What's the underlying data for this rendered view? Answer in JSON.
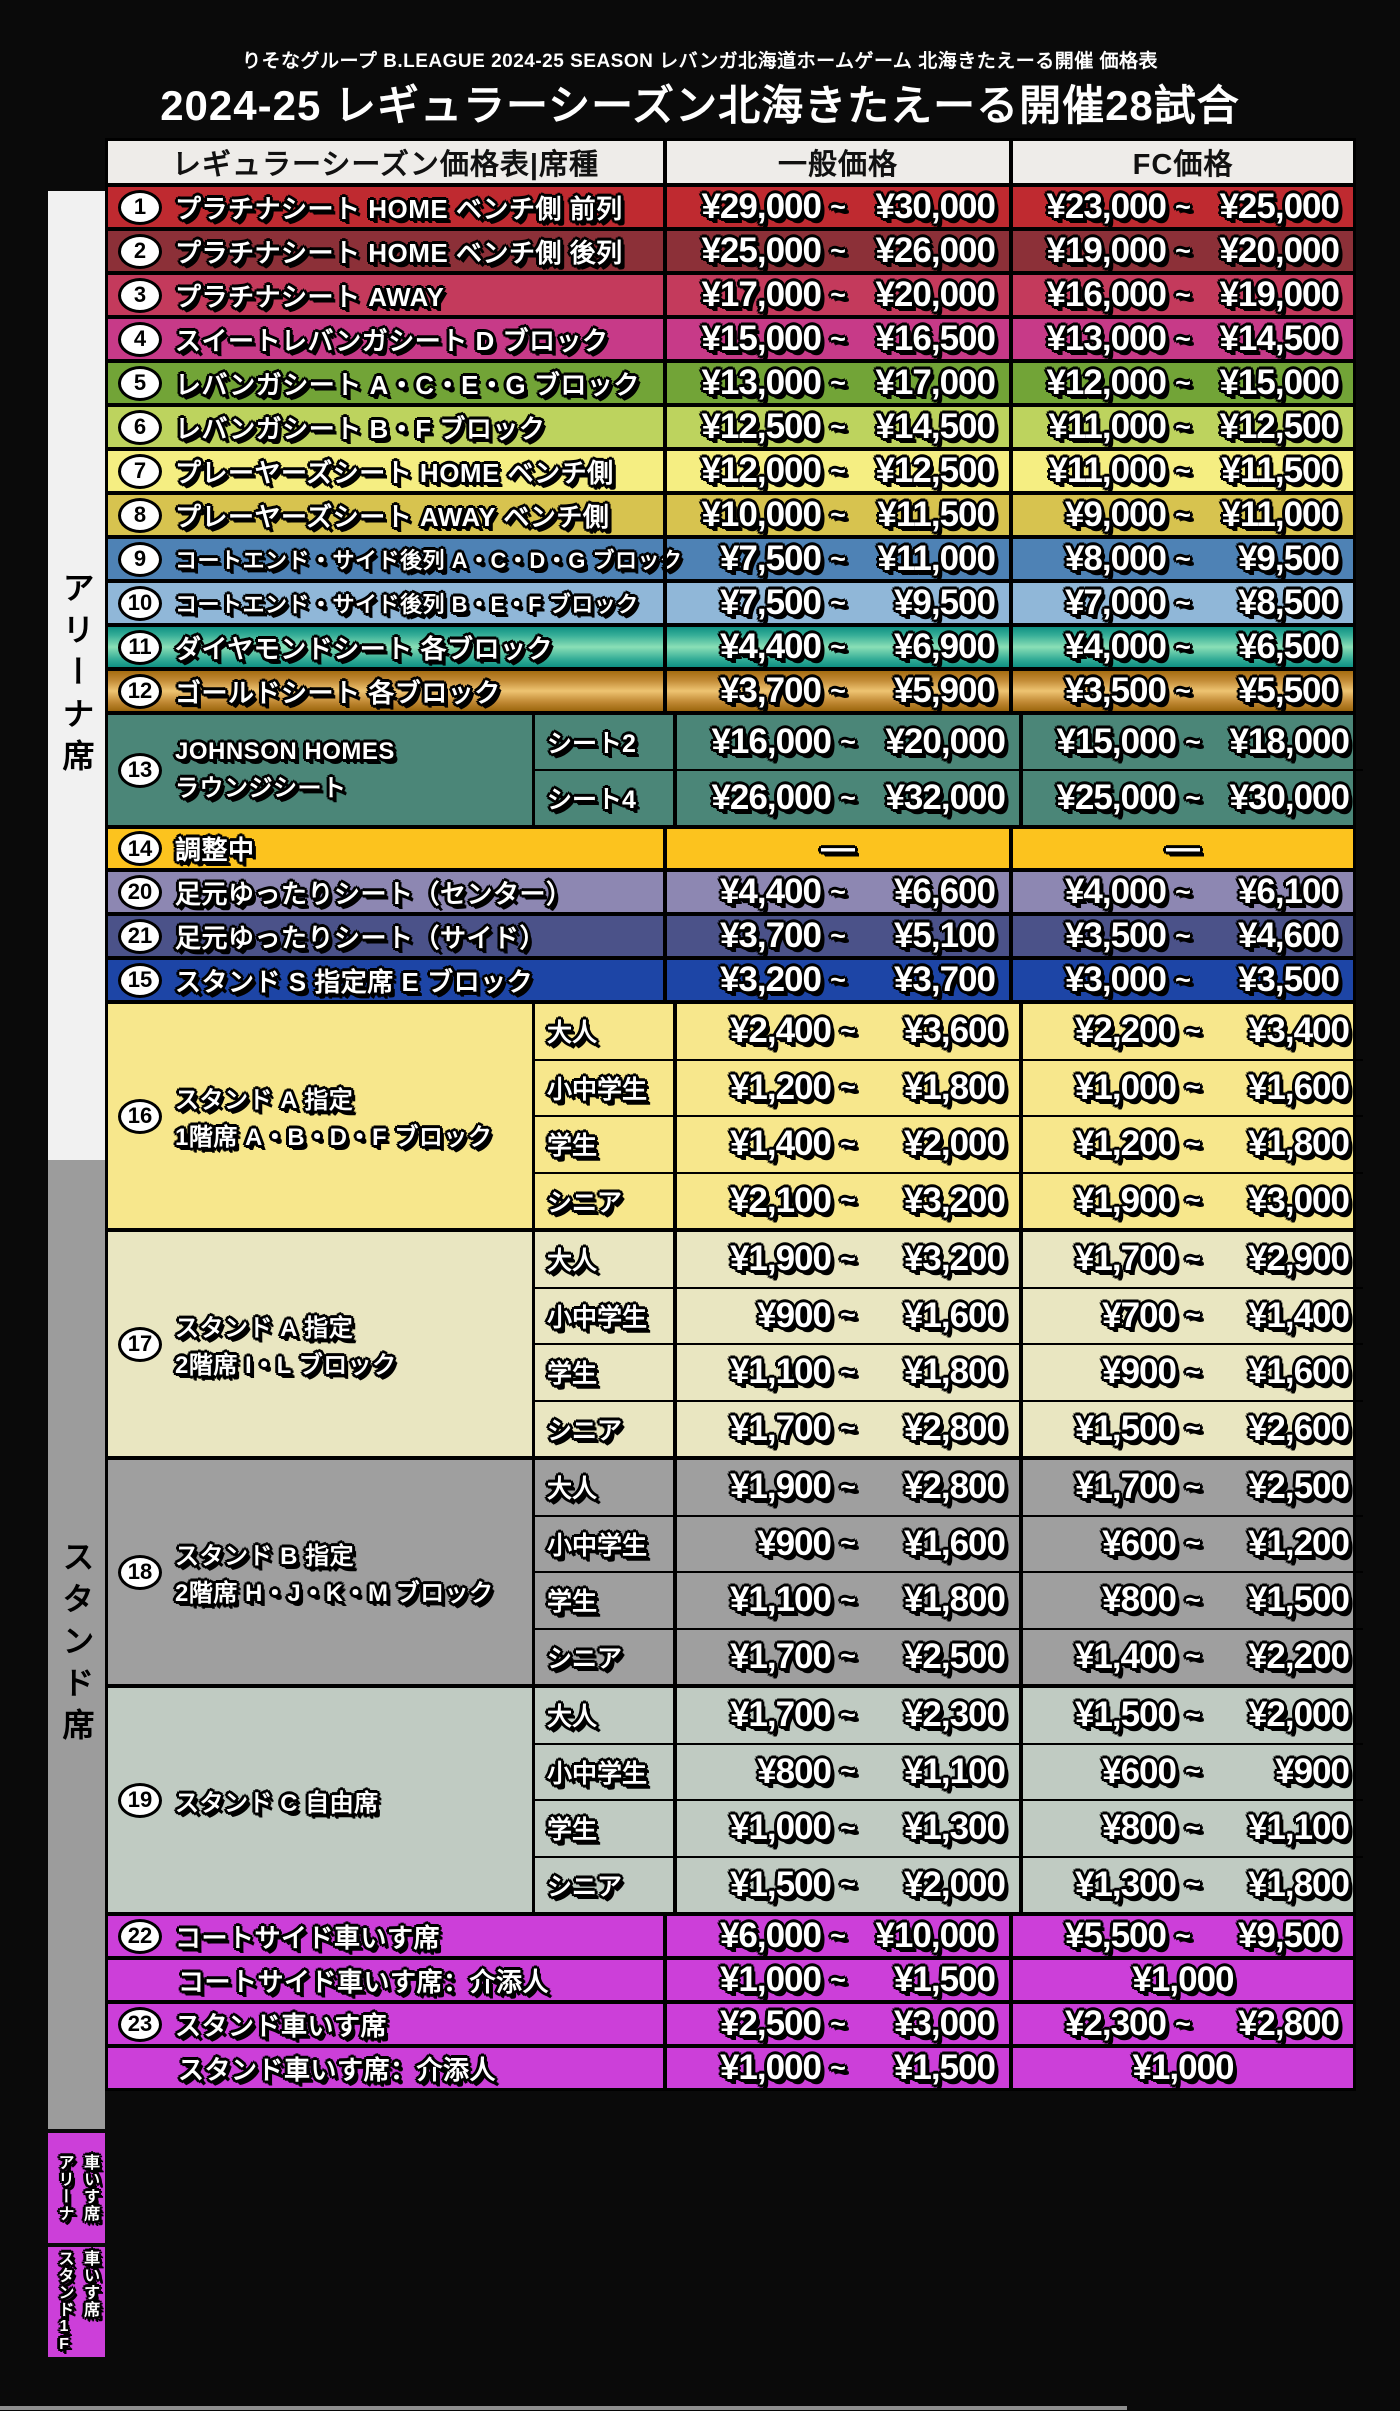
{
  "page": {
    "subtitle": "りそなグループ B.LEAGUE 2024-25 SEASON レバンガ北海道ホームゲーム 北海きたえーる開催 価格表",
    "title": "2024-25 レギュラーシーズン北海きたえーる開催28試合",
    "tilde": "~",
    "dash": "—"
  },
  "columns": {
    "seat": "レギュラーシーズン価格表|席種",
    "general": "一般価格",
    "fc": "FC価格"
  },
  "sidebar": {
    "arena": "アリーナ席",
    "stand": "スタンド席",
    "wheelchair_arena": {
      "line1": "車いす席",
      "line2": "アリーナ"
    },
    "wheelchair_stand": {
      "line1": "車いす席",
      "line2": "スタンド1F"
    }
  },
  "colors": {
    "background": "#0a0a0a",
    "header_bg": "#eeece9",
    "arena_strip": "#f1f1f1",
    "stand_strip": "#9c9c9c",
    "wheelchair_strip": "#cc3fd9",
    "row1": "#bf2a30",
    "row2": "#8c3038",
    "row3": "#c43a5c",
    "row4": "#c73a88",
    "row5": "#72a437",
    "row6": "#bdd35e",
    "row7": "#f5ee82",
    "row8": "#d7c34f",
    "row9": "#4e82b5",
    "row10": "#90b7d8",
    "row11_teal_gradient": "#0f9183",
    "row12_gold_gradient": "#c08833",
    "row13": "#4b8678",
    "row14": "#fcc31e",
    "row20": "#8d87b2",
    "row21": "#4b5289",
    "row15": "#1d45a6",
    "row16": "#f7e78c",
    "row17": "#e9e6c1",
    "row18": "#9f9f9f",
    "row19": "#c0cbc2",
    "row22": "#cc3fd9"
  },
  "rows": {
    "r1": {
      "num": "1",
      "label": "プラチナシート HOME ベンチ側 前列",
      "general": {
        "min": "¥29,000",
        "max": "¥30,000"
      },
      "fc": {
        "min": "¥23,000",
        "max": "¥25,000"
      }
    },
    "r2": {
      "num": "2",
      "label": "プラチナシート HOME ベンチ側 後列",
      "general": {
        "min": "¥25,000",
        "max": "¥26,000"
      },
      "fc": {
        "min": "¥19,000",
        "max": "¥20,000"
      }
    },
    "r3": {
      "num": "3",
      "label": "プラチナシート AWAY",
      "general": {
        "min": "¥17,000",
        "max": "¥20,000"
      },
      "fc": {
        "min": "¥16,000",
        "max": "¥19,000"
      }
    },
    "r4": {
      "num": "4",
      "label": "スイートレバンガシート D ブロック",
      "general": {
        "min": "¥15,000",
        "max": "¥16,500"
      },
      "fc": {
        "min": "¥13,000",
        "max": "¥14,500"
      }
    },
    "r5": {
      "num": "5",
      "label": "レバンガシート A・C・E・G ブロック",
      "general": {
        "min": "¥13,000",
        "max": "¥17,000"
      },
      "fc": {
        "min": "¥12,000",
        "max": "¥15,000"
      }
    },
    "r6": {
      "num": "6",
      "label": "レバンガシート B・F ブロック",
      "general": {
        "min": "¥12,500",
        "max": "¥14,500"
      },
      "fc": {
        "min": "¥11,000",
        "max": "¥12,500"
      }
    },
    "r7": {
      "num": "7",
      "label": "プレーヤーズシート HOME ベンチ側",
      "general": {
        "min": "¥12,000",
        "max": "¥12,500"
      },
      "fc": {
        "min": "¥11,000",
        "max": "¥11,500"
      }
    },
    "r8": {
      "num": "8",
      "label": "プレーヤーズシート AWAY ベンチ側",
      "general": {
        "min": "¥10,000",
        "max": "¥11,500"
      },
      "fc": {
        "min": "¥9,000",
        "max": "¥11,000"
      }
    },
    "r9": {
      "num": "9",
      "label": "コートエンド・サイド後列 A・C・D・G ブロック",
      "general": {
        "min": "¥7,500",
        "max": "¥11,000"
      },
      "fc": {
        "min": "¥8,000",
        "max": "¥9,500"
      }
    },
    "r10": {
      "num": "10",
      "label": "コートエンド・サイド後列 B・E・F ブロック",
      "general": {
        "min": "¥7,500",
        "max": "¥9,500"
      },
      "fc": {
        "min": "¥7,000",
        "max": "¥8,500"
      }
    },
    "r11": {
      "num": "11",
      "label": "ダイヤモンドシート 各ブロック",
      "general": {
        "min": "¥4,400",
        "max": "¥6,900"
      },
      "fc": {
        "min": "¥4,000",
        "max": "¥6,500"
      }
    },
    "r12": {
      "num": "12",
      "label": "ゴールドシート 各ブロック",
      "general": {
        "min": "¥3,700",
        "max": "¥5,900"
      },
      "fc": {
        "min": "¥3,500",
        "max": "¥5,500"
      }
    },
    "r13": {
      "num": "13",
      "label1": "JOHNSON HOMES",
      "label2": "ラウンジシート",
      "subs": {
        "s1": {
          "cat": "シート2",
          "general": {
            "min": "¥16,000",
            "max": "¥20,000"
          },
          "fc": {
            "min": "¥15,000",
            "max": "¥18,000"
          }
        },
        "s2": {
          "cat": "シート4",
          "general": {
            "min": "¥26,000",
            "max": "¥32,000"
          },
          "fc": {
            "min": "¥25,000",
            "max": "¥30,000"
          }
        }
      }
    },
    "r14": {
      "num": "14",
      "label": "調整中"
    },
    "r20": {
      "num": "20",
      "label": "足元ゆったりシート（センター）",
      "general": {
        "min": "¥4,400",
        "max": "¥6,600"
      },
      "fc": {
        "min": "¥4,000",
        "max": "¥6,100"
      }
    },
    "r21": {
      "num": "21",
      "label": "足元ゆったりシート（サイド）",
      "general": {
        "min": "¥3,700",
        "max": "¥5,100"
      },
      "fc": {
        "min": "¥3,500",
        "max": "¥4,600"
      }
    },
    "r15": {
      "num": "15",
      "label": "スタンド S 指定席 E ブロック",
      "general": {
        "min": "¥3,200",
        "max": "¥3,700"
      },
      "fc": {
        "min": "¥3,000",
        "max": "¥3,500"
      }
    },
    "r16": {
      "num": "16",
      "label1": "スタンド A 指定",
      "label2": "1階席 A・B・D・F ブロック",
      "subs": {
        "s1": {
          "cat": "大人",
          "general": {
            "min": "¥2,400",
            "max": "¥3,600"
          },
          "fc": {
            "min": "¥2,200",
            "max": "¥3,400"
          }
        },
        "s2": {
          "cat": "小中学生",
          "general": {
            "min": "¥1,200",
            "max": "¥1,800"
          },
          "fc": {
            "min": "¥1,000",
            "max": "¥1,600"
          }
        },
        "s3": {
          "cat": "学生",
          "general": {
            "min": "¥1,400",
            "max": "¥2,000"
          },
          "fc": {
            "min": "¥1,200",
            "max": "¥1,800"
          }
        },
        "s4": {
          "cat": "シニア",
          "general": {
            "min": "¥2,100",
            "max": "¥3,200"
          },
          "fc": {
            "min": "¥1,900",
            "max": "¥3,000"
          }
        }
      }
    },
    "r17": {
      "num": "17",
      "label1": "スタンド A 指定",
      "label2": "2階席 I・L ブロック",
      "subs": {
        "s1": {
          "cat": "大人",
          "general": {
            "min": "¥1,900",
            "max": "¥3,200"
          },
          "fc": {
            "min": "¥1,700",
            "max": "¥2,900"
          }
        },
        "s2": {
          "cat": "小中学生",
          "general": {
            "min": "¥900",
            "max": "¥1,600"
          },
          "fc": {
            "min": "¥700",
            "max": "¥1,400"
          }
        },
        "s3": {
          "cat": "学生",
          "general": {
            "min": "¥1,100",
            "max": "¥1,800"
          },
          "fc": {
            "min": "¥900",
            "max": "¥1,600"
          }
        },
        "s4": {
          "cat": "シニア",
          "general": {
            "min": "¥1,700",
            "max": "¥2,800"
          },
          "fc": {
            "min": "¥1,500",
            "max": "¥2,600"
          }
        }
      }
    },
    "r18": {
      "num": "18",
      "label1": "スタンド B 指定",
      "label2": "2階席 H・J・K・M ブロック",
      "subs": {
        "s1": {
          "cat": "大人",
          "general": {
            "min": "¥1,900",
            "max": "¥2,800"
          },
          "fc": {
            "min": "¥1,700",
            "max": "¥2,500"
          }
        },
        "s2": {
          "cat": "小中学生",
          "general": {
            "min": "¥900",
            "max": "¥1,600"
          },
          "fc": {
            "min": "¥600",
            "max": "¥1,200"
          }
        },
        "s3": {
          "cat": "学生",
          "general": {
            "min": "¥1,100",
            "max": "¥1,800"
          },
          "fc": {
            "min": "¥800",
            "max": "¥1,500"
          }
        },
        "s4": {
          "cat": "シニア",
          "general": {
            "min": "¥1,700",
            "max": "¥2,500"
          },
          "fc": {
            "min": "¥1,400",
            "max": "¥2,200"
          }
        }
      }
    },
    "r19": {
      "num": "19",
      "label1": "スタンド C 自由席",
      "subs": {
        "s1": {
          "cat": "大人",
          "general": {
            "min": "¥1,700",
            "max": "¥2,300"
          },
          "fc": {
            "min": "¥1,500",
            "max": "¥2,000"
          }
        },
        "s2": {
          "cat": "小中学生",
          "general": {
            "min": "¥800",
            "max": "¥1,100"
          },
          "fc": {
            "min": "¥600",
            "max": "¥900"
          }
        },
        "s3": {
          "cat": "学生",
          "general": {
            "min": "¥1,000",
            "max": "¥1,300"
          },
          "fc": {
            "min": "¥800",
            "max": "¥1,100"
          }
        },
        "s4": {
          "cat": "シニア",
          "general": {
            "min": "¥1,500",
            "max": "¥2,000"
          },
          "fc": {
            "min": "¥1,300",
            "max": "¥1,800"
          }
        }
      }
    },
    "r22": {
      "num": "22",
      "label": "コートサイド車いす席",
      "general": {
        "min": "¥6,000",
        "max": "¥10,000"
      },
      "fc": {
        "min": "¥5,500",
        "max": "¥9,500"
      }
    },
    "r22b": {
      "label": "コートサイド車いす席：介添人",
      "general": {
        "min": "¥1,000",
        "max": "¥1,500"
      },
      "fc": {
        "single": "¥1,000"
      }
    },
    "r23": {
      "num": "23",
      "label": "スタンド車いす席",
      "general": {
        "min": "¥2,500",
        "max": "¥3,000"
      },
      "fc": {
        "min": "¥2,300",
        "max": "¥2,800"
      }
    },
    "r23b": {
      "label": "スタンド車いす席：介添人",
      "general": {
        "min": "¥1,000",
        "max": "¥1,500"
      },
      "fc": {
        "single": "¥1,000"
      }
    }
  }
}
